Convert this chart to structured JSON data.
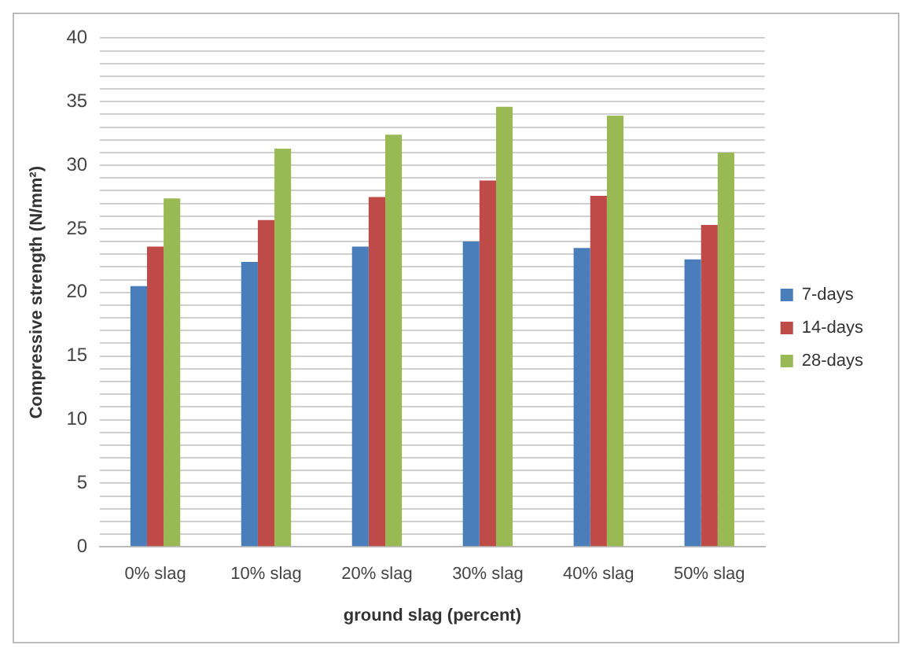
{
  "chart_data": {
    "type": "bar",
    "xlabel": "ground slag (percent)",
    "ylabel": "Compressive strength (N/mm²)",
    "categories": [
      "0% slag",
      "10% slag",
      "20% slag",
      "30% slag",
      "40% slag",
      "50% slag"
    ],
    "series": [
      {
        "name": "7-days",
        "color": "#4a7ebb",
        "values": [
          20.5,
          22.4,
          23.6,
          24.0,
          23.5,
          22.6
        ]
      },
      {
        "name": "14-days",
        "color": "#be4b48",
        "values": [
          23.6,
          25.7,
          27.5,
          28.8,
          27.6,
          25.3
        ]
      },
      {
        "name": "28-days",
        "color": "#98b954",
        "values": [
          27.4,
          31.3,
          32.4,
          34.6,
          33.9,
          31.0
        ]
      }
    ],
    "ylim": [
      0,
      40
    ],
    "yticks": [
      0,
      {
        "value": 1,
        "label": null
      },
      {
        "value": 2,
        "label": null
      },
      {
        "value": 3,
        "label": null
      },
      {
        "value": 4,
        "label": null
      },
      5,
      {
        "value": 6,
        "label": null
      },
      {
        "value": 7,
        "label": null
      },
      {
        "value": 8,
        "label": null
      },
      {
        "value": 9,
        "label": null
      },
      10,
      {
        "value": 11,
        "label": null
      },
      {
        "value": 12,
        "label": null
      },
      {
        "value": 13,
        "label": null
      },
      {
        "value": 14,
        "label": null
      },
      15,
      {
        "value": 16,
        "label": null
      },
      {
        "value": 17,
        "label": null
      },
      {
        "value": 18,
        "label": null
      },
      {
        "value": 19,
        "label": null
      },
      20,
      {
        "value": 21,
        "label": null
      },
      {
        "value": 22,
        "label": null
      },
      {
        "value": 23,
        "label": null
      },
      {
        "value": 24,
        "label": null
      },
      25,
      {
        "value": 26,
        "label": null
      },
      {
        "value": 27,
        "label": null
      },
      {
        "value": 28,
        "label": null
      },
      {
        "value": 29,
        "label": null
      },
      30,
      {
        "value": 31,
        "label": null
      },
      {
        "value": 32,
        "label": null
      },
      {
        "value": 33,
        "label": null
      },
      {
        "value": 34,
        "label": null
      },
      35,
      {
        "value": 36,
        "label": null
      },
      {
        "value": 37,
        "label": null
      },
      {
        "value": 38,
        "label": null
      },
      {
        "value": 39,
        "label": null
      },
      40
    ],
    "grid": "y",
    "legend": "right"
  }
}
